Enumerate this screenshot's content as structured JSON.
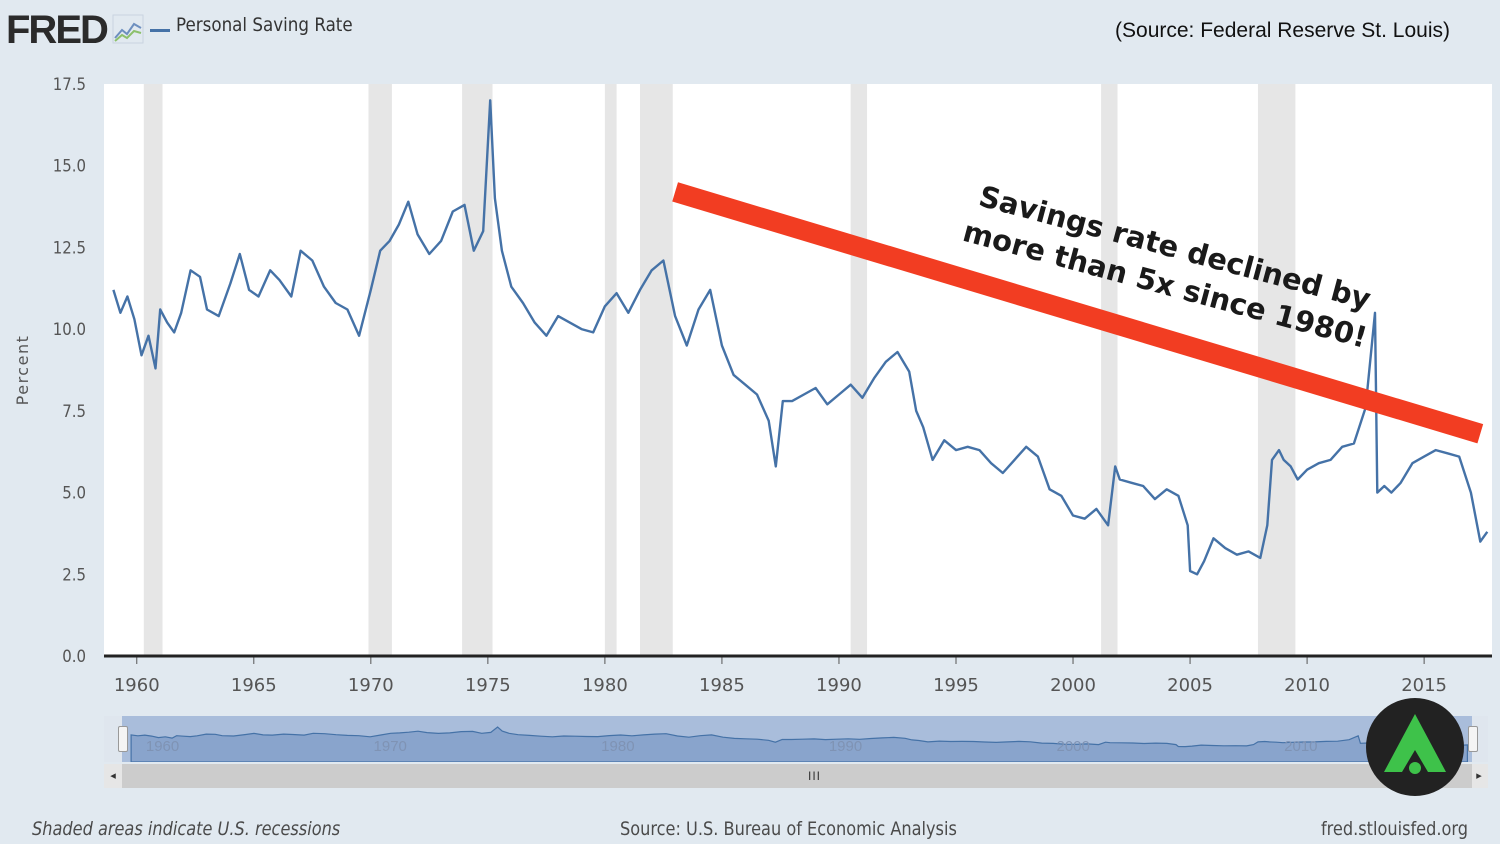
{
  "header": {
    "logo_text": "FRED",
    "series_label": "Personal Saving Rate",
    "source_note": "(Source: Federal Reserve St. Louis)"
  },
  "annotation": {
    "line1": "Savings rate declined by",
    "line2": "more than 5x since 1980!"
  },
  "navigator": {
    "year_labels": [
      "1960",
      "1970",
      "1980",
      "1990",
      "2000",
      "2010"
    ],
    "scroll_grip": "III",
    "left_arrow": "◂",
    "right_arrow": "▸"
  },
  "footer": {
    "recession_note": "Shaded areas indicate U.S. recessions",
    "data_source": "Source: U.S. Bureau of Economic Analysis",
    "site": "fred.stlouisfed.org"
  },
  "colors": {
    "series": "#4572a7",
    "recession": "#e6e6e6",
    "trend_arrow": "#f23d22",
    "badge_bg": "#222222",
    "badge_accent": "#3ec24a"
  },
  "chart_data": {
    "type": "line",
    "title": "Personal Saving Rate",
    "xlabel": "",
    "ylabel": "Percent",
    "xlim": [
      1958.6,
      2017.9
    ],
    "ylim": [
      0,
      17.5
    ],
    "yticks": [
      0.0,
      2.5,
      5.0,
      7.5,
      10.0,
      12.5,
      15.0,
      17.5
    ],
    "ytick_labels": [
      "0.0",
      "2.5",
      "5.0",
      "7.5",
      "10.0",
      "12.5",
      "15.0",
      "17.5"
    ],
    "xticks": [
      1960,
      1965,
      1970,
      1975,
      1980,
      1985,
      1990,
      1995,
      2000,
      2005,
      2010,
      2015
    ],
    "xtick_labels": [
      "1960",
      "1965",
      "1970",
      "1975",
      "1980",
      "1985",
      "1990",
      "1995",
      "2000",
      "2005",
      "2010",
      "2015"
    ],
    "grid": "horizontal",
    "recessions": [
      [
        1960.3,
        1961.1
      ],
      [
        1969.9,
        1970.9
      ],
      [
        1973.9,
        1975.2
      ],
      [
        1980.0,
        1980.5
      ],
      [
        1981.5,
        1982.9
      ],
      [
        1990.5,
        1991.2
      ],
      [
        2001.2,
        2001.9
      ],
      [
        2007.9,
        2009.5
      ]
    ],
    "trend_arrow": {
      "from": [
        1983.0,
        14.2
      ],
      "to": [
        2017.4,
        6.8
      ]
    },
    "series": [
      {
        "name": "Personal Saving Rate",
        "x": [
          1959.0,
          1959.3,
          1959.6,
          1959.9,
          1960.2,
          1960.5,
          1960.8,
          1961.0,
          1961.3,
          1961.6,
          1961.9,
          1962.3,
          1962.7,
          1963.0,
          1963.5,
          1964.0,
          1964.4,
          1964.8,
          1965.2,
          1965.7,
          1966.1,
          1966.6,
          1967.0,
          1967.5,
          1968.0,
          1968.5,
          1969.0,
          1969.5,
          1970.0,
          1970.4,
          1970.8,
          1971.2,
          1971.6,
          1972.0,
          1972.5,
          1973.0,
          1973.5,
          1974.0,
          1974.4,
          1974.8,
          1975.1,
          1975.3,
          1975.6,
          1976.0,
          1976.5,
          1977.0,
          1977.5,
          1978.0,
          1978.5,
          1979.0,
          1979.5,
          1980.0,
          1980.5,
          1981.0,
          1981.5,
          1982.0,
          1982.5,
          1983.0,
          1983.5,
          1984.0,
          1984.5,
          1985.0,
          1985.5,
          1986.0,
          1986.5,
          1987.0,
          1987.3,
          1987.6,
          1988.0,
          1988.5,
          1989.0,
          1989.5,
          1990.0,
          1990.5,
          1991.0,
          1991.5,
          1992.0,
          1992.5,
          1993.0,
          1993.3,
          1993.6,
          1994.0,
          1994.5,
          1995.0,
          1995.5,
          1996.0,
          1996.5,
          1997.0,
          1997.5,
          1998.0,
          1998.5,
          1999.0,
          1999.5,
          2000.0,
          2000.5,
          2001.0,
          2001.5,
          2001.8,
          2002.0,
          2002.5,
          2003.0,
          2003.5,
          2004.0,
          2004.5,
          2004.9,
          2005.0,
          2005.3,
          2005.6,
          2006.0,
          2006.5,
          2007.0,
          2007.5,
          2008.0,
          2008.3,
          2008.5,
          2008.8,
          2009.0,
          2009.3,
          2009.6,
          2010.0,
          2010.5,
          2011.0,
          2011.5,
          2012.0,
          2012.5,
          2012.9,
          2013.0,
          2013.3,
          2013.6,
          2014.0,
          2014.5,
          2015.0,
          2015.5,
          2016.0,
          2016.5,
          2017.0,
          2017.4,
          2017.7
        ],
        "values": [
          11.2,
          10.5,
          11.0,
          10.3,
          9.2,
          9.8,
          8.8,
          10.6,
          10.2,
          9.9,
          10.5,
          11.8,
          11.6,
          10.6,
          10.4,
          11.4,
          12.3,
          11.2,
          11.0,
          11.8,
          11.5,
          11.0,
          12.4,
          12.1,
          11.3,
          10.8,
          10.6,
          9.8,
          11.2,
          12.4,
          12.7,
          13.2,
          13.9,
          12.9,
          12.3,
          12.7,
          13.6,
          13.8,
          12.4,
          13.0,
          17.0,
          14.0,
          12.4,
          11.3,
          10.8,
          10.2,
          9.8,
          10.4,
          10.2,
          10.0,
          9.9,
          10.7,
          11.1,
          10.5,
          11.2,
          11.8,
          12.1,
          10.4,
          9.5,
          10.6,
          11.2,
          9.5,
          8.6,
          8.3,
          8.0,
          7.2,
          5.8,
          7.8,
          7.8,
          8.0,
          8.2,
          7.7,
          8.0,
          8.3,
          7.9,
          8.5,
          9.0,
          9.3,
          8.7,
          7.5,
          7.0,
          6.0,
          6.6,
          6.3,
          6.4,
          6.3,
          5.9,
          5.6,
          6.0,
          6.4,
          6.1,
          5.1,
          4.9,
          4.3,
          4.2,
          4.5,
          4.0,
          5.8,
          5.4,
          5.3,
          5.2,
          4.8,
          5.1,
          4.9,
          4.0,
          2.6,
          2.5,
          2.9,
          3.6,
          3.3,
          3.1,
          3.2,
          3.0,
          4.0,
          6.0,
          6.3,
          6.0,
          5.8,
          5.4,
          5.7,
          5.9,
          6.0,
          6.4,
          6.5,
          7.6,
          10.5,
          5.0,
          5.2,
          5.0,
          5.3,
          5.9,
          6.1,
          6.3,
          6.2,
          6.1,
          5.0,
          3.5,
          3.8
        ]
      }
    ]
  }
}
